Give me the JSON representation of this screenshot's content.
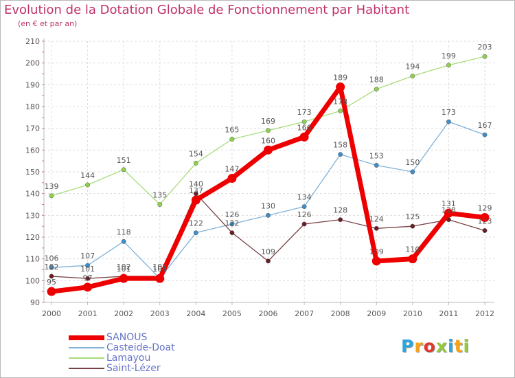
{
  "chart_data": {
    "type": "line",
    "title": "Evolution de la Dotation Globale de Fonctionnement par Habitant",
    "subtitle": "(en € et par an)",
    "xlabel": "",
    "ylabel": "",
    "ylim": [
      90,
      210
    ],
    "yticks": [
      90,
      100,
      110,
      120,
      130,
      140,
      150,
      160,
      170,
      180,
      190,
      200,
      210
    ],
    "grid": true,
    "legend_position": "bottom-left",
    "categories": [
      "2000",
      "2001",
      "2002",
      "2003",
      "2004",
      "2005",
      "2006",
      "2007",
      "2008",
      "2009",
      "2010",
      "2011",
      "2012"
    ],
    "series": [
      {
        "name": "Lamayou",
        "color": "#8fd14f",
        "line_color": "#a8dc7a",
        "width": 1.3,
        "marker": 3.2,
        "values": [
          139,
          144,
          151,
          135,
          154,
          165,
          169,
          173,
          178,
          188,
          194,
          199,
          203
        ]
      },
      {
        "name": "Casteide-Doat",
        "color": "#3d8ec9",
        "line_color": "#7fb2d9",
        "width": 1.3,
        "marker": 3.2,
        "values": [
          106,
          107,
          118,
          101,
          122,
          126,
          130,
          134,
          158,
          153,
          150,
          173,
          167
        ]
      },
      {
        "name": "Saint-Lézer",
        "color": "#6b1e25",
        "line_color": "#7a4045",
        "width": 1.3,
        "marker": 3.2,
        "values": [
          102,
          101,
          102,
          102,
          140,
          122,
          109,
          126,
          128,
          124,
          125,
          128,
          123
        ]
      },
      {
        "name": "SANOUS",
        "color": "#ee0000",
        "line_color": "#ee0000",
        "width": 7,
        "marker": 6.5,
        "values": [
          95,
          97,
          101,
          101,
          137,
          147,
          160,
          166,
          189,
          109,
          110,
          131,
          129
        ]
      }
    ],
    "legend_order": [
      "SANOUS",
      "Casteide-Doat",
      "Lamayou",
      "Saint-Lézer"
    ]
  },
  "logo": {
    "letters": [
      "P",
      "r",
      "o",
      "x",
      "i",
      "t",
      "i"
    ],
    "colors": [
      "#2aa7e0",
      "#f5a31a",
      "#e2382e",
      "#94c83d",
      "#2aa7e0",
      "#f5a31a",
      "#94c83d"
    ]
  }
}
